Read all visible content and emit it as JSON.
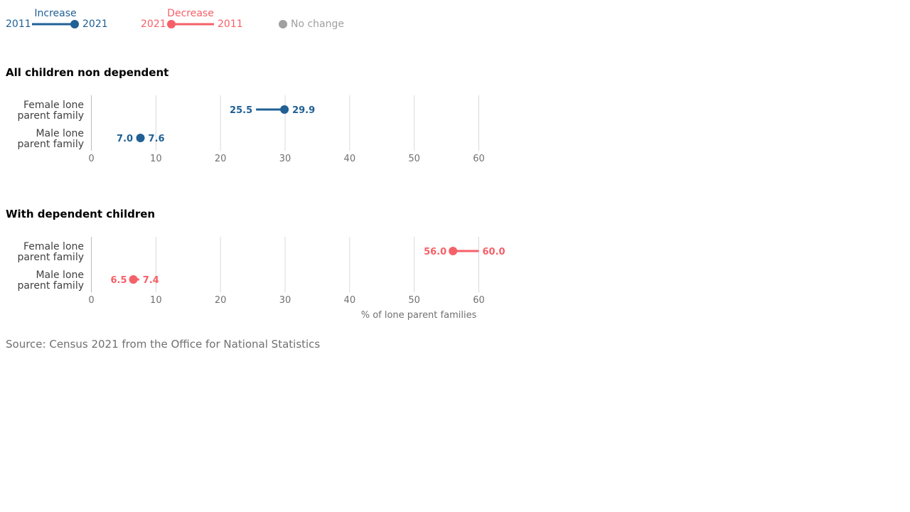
{
  "legend": {
    "increase": {
      "title": "Increase",
      "from_label": "2011",
      "to_label": "2021"
    },
    "decrease": {
      "title": "Decrease",
      "from_label": "2021",
      "to_label": "2011"
    },
    "no_change": {
      "label": "No change"
    }
  },
  "colors": {
    "increase": "#206095",
    "decrease": "#F66068",
    "no_change": "#A0A0A0",
    "text": "#222222",
    "axis_text": "#707070",
    "grid": "#D9D9D9",
    "axis": "#BBBBBB"
  },
  "chart_data": [
    {
      "type": "dumbbell",
      "title": "All children non dependent",
      "categories": [
        "Female lone parent family",
        "Male lone parent family"
      ],
      "series": [
        {
          "name": "2011",
          "values": [
            25.5,
            7.0
          ]
        },
        {
          "name": "2021",
          "values": [
            29.9,
            7.6
          ]
        }
      ],
      "xlim": [
        0,
        60
      ],
      "xticks": [
        "0",
        "10",
        "20",
        "30",
        "40",
        "50",
        "60"
      ],
      "xlabel": "",
      "grid": true
    },
    {
      "type": "dumbbell",
      "title": "With dependent children",
      "categories": [
        "Female lone parent family",
        "Male lone parent family"
      ],
      "series": [
        {
          "name": "2011",
          "values": [
            60.0,
            7.4
          ]
        },
        {
          "name": "2021",
          "values": [
            56.0,
            6.5
          ]
        }
      ],
      "xlim": [
        0,
        60
      ],
      "xticks": [
        "0",
        "10",
        "20",
        "30",
        "40",
        "50",
        "60"
      ],
      "xlabel": "% of lone parent families",
      "grid": true
    }
  ],
  "source": "Source: Census 2021 from the Office for National Statistics"
}
